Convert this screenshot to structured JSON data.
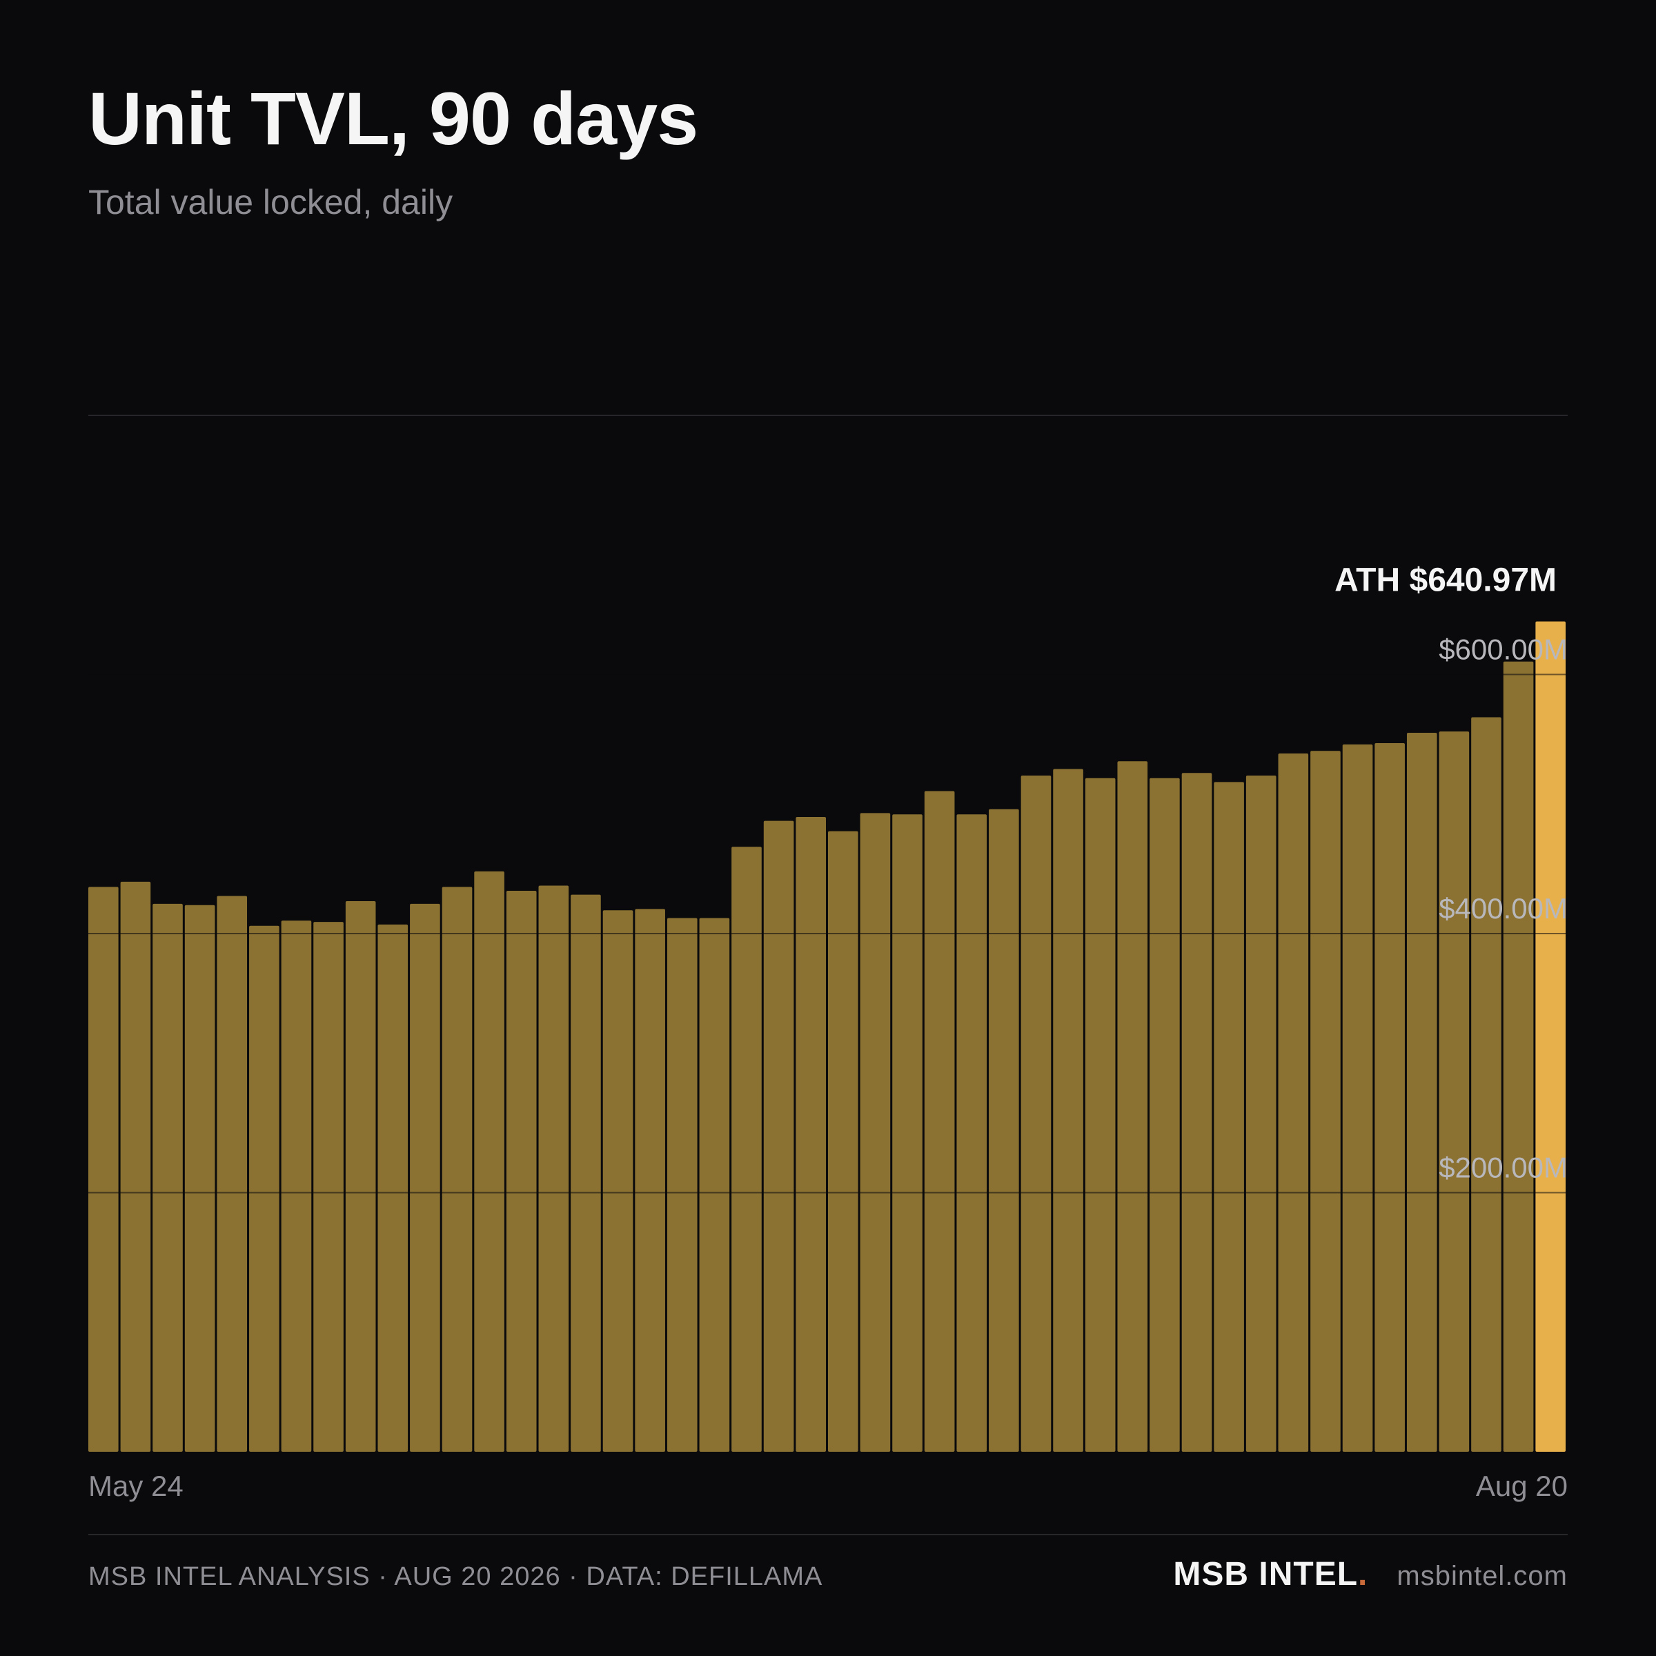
{
  "header": {
    "title": "Unit TVL, 90 days",
    "subtitle": "Total value locked, daily"
  },
  "footer": {
    "credit": "MSB INTEL ANALYSIS · AUG 20 2026 · DATA: DEFILLAMA",
    "brand": "MSB INTEL",
    "brand_dot": ".",
    "site": "msbintel.com"
  },
  "colors": {
    "background": "#0a0a0c",
    "bar": "#8b7233",
    "bar_highlight": "#e8b04a",
    "brand_dot": "#c86a3a"
  },
  "chart_data": {
    "type": "bar",
    "title": "Unit TVL, 90 days",
    "subtitle": "Total value locked, daily",
    "ylim": [
      0,
      800
    ],
    "y_unit": "$M",
    "grid": true,
    "y_ticks": [
      {
        "value": 200,
        "label": "$200.00M"
      },
      {
        "value": 400,
        "label": "$400.00M"
      },
      {
        "value": 600,
        "label": "$600.00M"
      }
    ],
    "x_labels": {
      "start": "May 24",
      "end": "Aug 20"
    },
    "values": [
      436,
      440,
      423,
      422,
      429,
      406,
      410,
      409,
      425,
      407,
      423,
      436,
      448,
      433,
      437,
      430,
      418,
      419,
      412,
      412,
      467,
      487,
      490,
      479,
      493,
      492,
      510,
      492,
      496,
      522,
      527,
      520,
      533,
      520,
      524,
      517,
      522,
      539,
      541,
      546,
      547,
      555,
      556,
      567,
      610,
      640.97
    ],
    "highlight_index": 45,
    "annotation": {
      "text": "ATH $640.97M",
      "index": 45
    }
  }
}
